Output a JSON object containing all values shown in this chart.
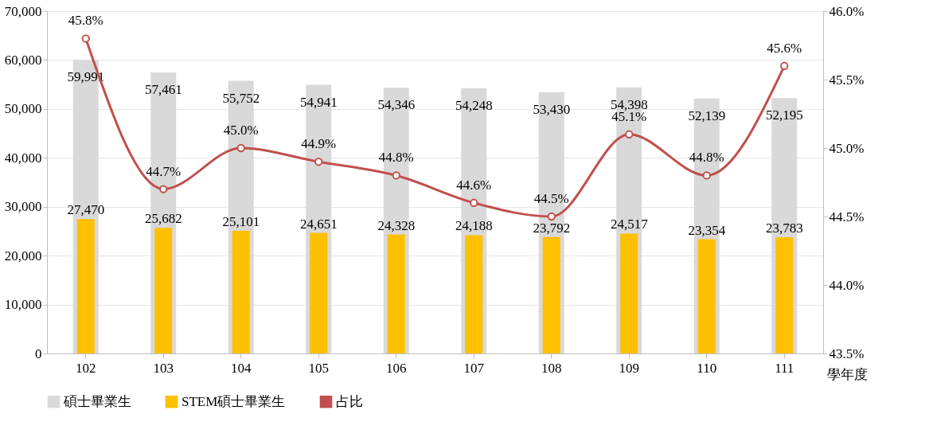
{
  "chart_data": {
    "type": "bar",
    "categories": [
      "102",
      "103",
      "104",
      "105",
      "106",
      "107",
      "108",
      "109",
      "110",
      "111"
    ],
    "xlabel": "學年度",
    "series": [
      {
        "name": "碩士畢業生",
        "color": "#d9d9d9",
        "values": [
          59991,
          57461,
          55752,
          54941,
          54346,
          54248,
          53430,
          54398,
          52139,
          52195
        ],
        "value_labels": [
          "59,991",
          "57,461",
          "55,752",
          "54,941",
          "54,346",
          "54,248",
          "53,430",
          "54,398",
          "52,139",
          "52,195"
        ]
      },
      {
        "name": "STEM碩士畢業生",
        "color": "#ffc000",
        "values": [
          27470,
          25682,
          25101,
          24651,
          24328,
          24188,
          23792,
          24517,
          23354,
          23783
        ],
        "value_labels": [
          "27,470",
          "25,682",
          "25,101",
          "24,651",
          "24,328",
          "24,188",
          "23,792",
          "24,517",
          "23,354",
          "23,783"
        ]
      },
      {
        "name": "占比",
        "type": "line",
        "axis": "y2",
        "color": "#c0504d",
        "marker": "circle",
        "values": [
          45.8,
          44.7,
          45.0,
          44.9,
          44.8,
          44.6,
          44.5,
          45.1,
          44.8,
          45.6
        ],
        "value_labels": [
          "45.8%",
          "44.7%",
          "45.0%",
          "44.9%",
          "44.8%",
          "44.6%",
          "44.5%",
          "45.1%",
          "44.8%",
          "45.6%"
        ]
      }
    ],
    "ylim": [
      0,
      70000
    ],
    "yticks": [
      {
        "value": 0,
        "label": "0"
      },
      {
        "value": 10000,
        "label": "10,000"
      },
      {
        "value": 20000,
        "label": "20,000"
      },
      {
        "value": 30000,
        "label": "30,000"
      },
      {
        "value": 40000,
        "label": "40,000"
      },
      {
        "value": 50000,
        "label": "50,000"
      },
      {
        "value": 60000,
        "label": "60,000"
      },
      {
        "value": 70000,
        "label": "70,000"
      }
    ],
    "y2lim": [
      43.5,
      46.0
    ],
    "y2ticks": [
      {
        "value": 43.5,
        "label": "43.5%"
      },
      {
        "value": 44.0,
        "label": "44.0%"
      },
      {
        "value": 44.5,
        "label": "44.5%"
      },
      {
        "value": 45.0,
        "label": "45.0%"
      },
      {
        "value": 45.5,
        "label": "45.5%"
      },
      {
        "value": 46.0,
        "label": "46.0%"
      }
    ],
    "grid": "y",
    "legend": "bottom"
  }
}
